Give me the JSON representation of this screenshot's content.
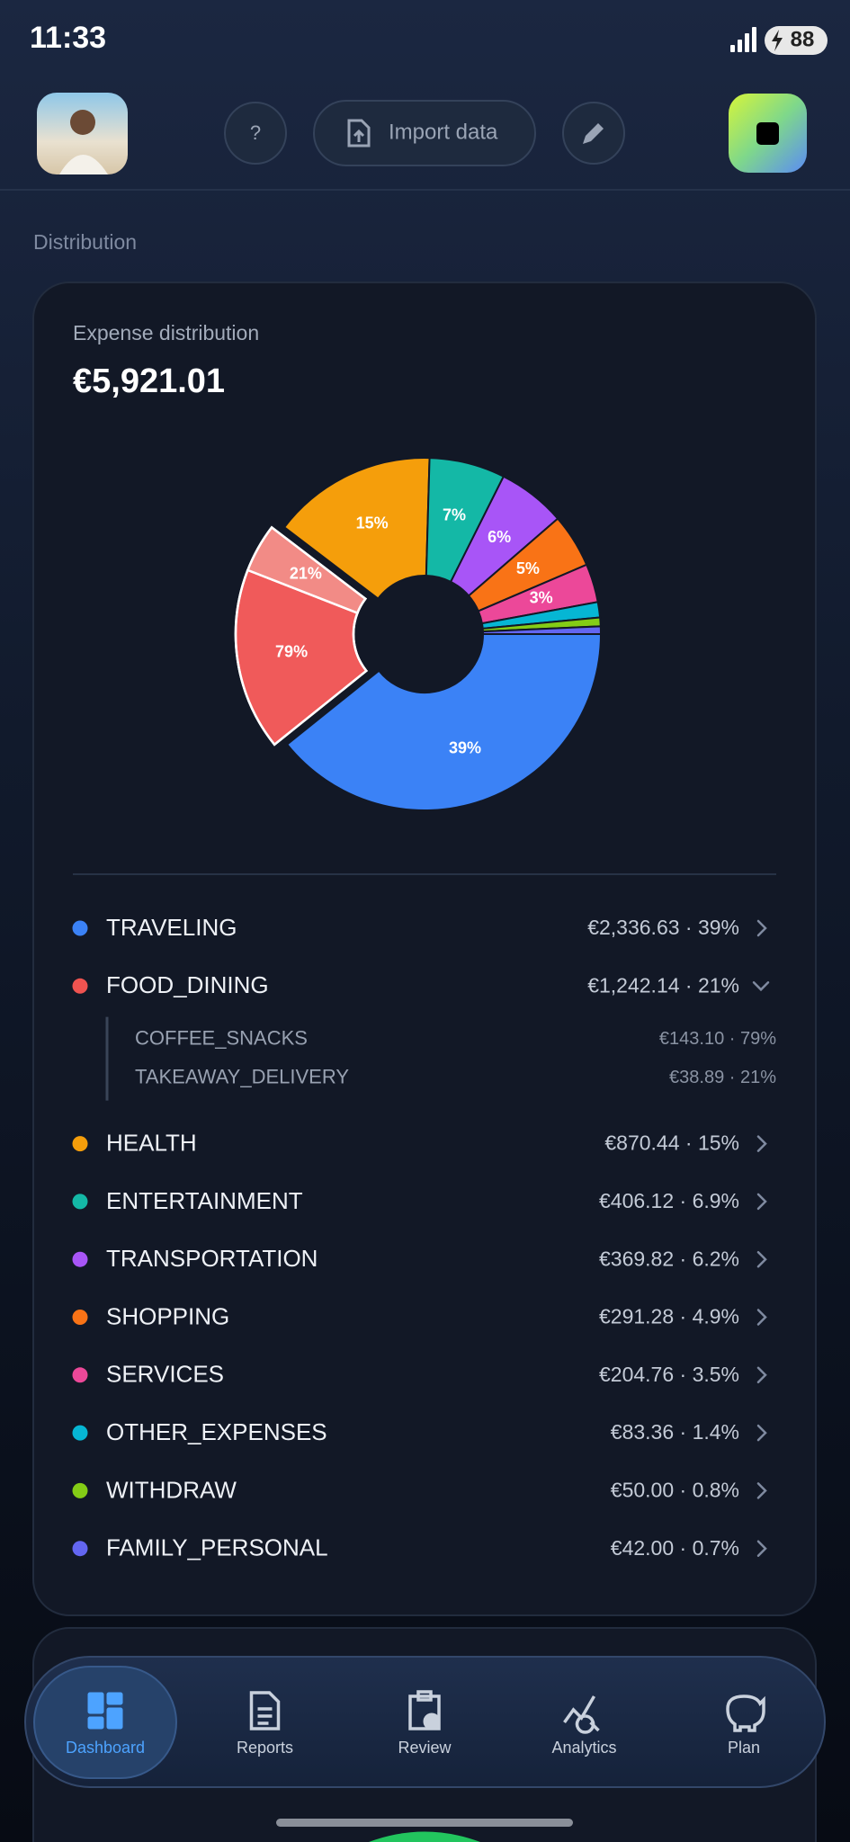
{
  "status_bar": {
    "time": "11:33",
    "battery": "88"
  },
  "header": {
    "help": "?",
    "import_button": "Import data"
  },
  "section_title": "Distribution",
  "card": {
    "title": "Expense distribution",
    "total": "€5,921.01"
  },
  "chart_data": {
    "type": "pie",
    "donut": true,
    "categories": [
      "TRAVELING",
      "FOOD_DINING",
      "HEALTH",
      "ENTERTAINMENT",
      "TRANSPORTATION",
      "SHOPPING",
      "SERVICES",
      "OTHER_EXPENSES",
      "WITHDRAW",
      "FAMILY_PERSONAL"
    ],
    "values": [
      39,
      21,
      15,
      6.9,
      6.2,
      4.9,
      3.5,
      1.4,
      0.8,
      0.7
    ],
    "value_labels": [
      "39%",
      null,
      "15%",
      "7%",
      "6%",
      "5%",
      "3%",
      null,
      null,
      null
    ],
    "colors": [
      "#3b82f6",
      "#ef5350",
      "#f59e0b",
      "#14b8a6",
      "#a855f7",
      "#f97316",
      "#ec4899",
      "#06b6d4",
      "#84cc16",
      "#6366f1"
    ],
    "details": [
      "€2,336.63 · 39%",
      "€1,242.14 · 21%",
      "€870.44 · 15%",
      "€406.12 · 6.9%",
      "€369.82 · 6.2%",
      "€291.28 · 4.9%",
      "€204.76 · 3.5%",
      "€83.36 · 1.4%",
      "€50.00 · 0.8%",
      "€42.00 · 0.7%"
    ],
    "breakdown": {
      "parent_index": 1,
      "categories": [
        "COFFEE_SNACKS",
        "TAKEAWAY_DELIVERY"
      ],
      "values": [
        79,
        21
      ],
      "value_labels": [
        "79%",
        "21%"
      ],
      "colors": [
        "#f05a5a",
        "#f28b86"
      ],
      "details": [
        "€143.10 · 79%",
        "€38.89 · 21%"
      ]
    }
  },
  "nav": {
    "items": [
      "Dashboard",
      "Reports",
      "Review",
      "Analytics",
      "Plan"
    ],
    "active": 0
  }
}
